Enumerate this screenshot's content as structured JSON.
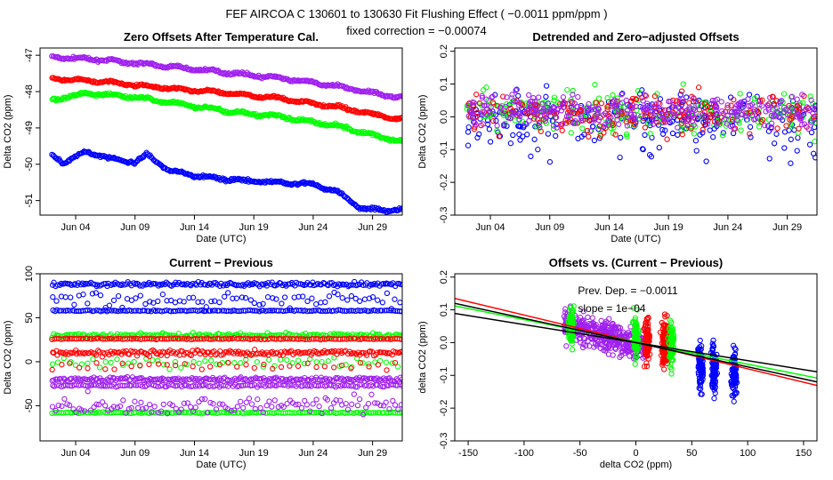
{
  "figure": {
    "title": "FEF    AIRCOA C    130601 to 130630    Fit Flushing Effect ( −0.0011 ppm/ppm )",
    "subtitle": "fixed correction = −0.00074"
  },
  "colors": {
    "purple": "#a020f0",
    "red": "#ff0000",
    "green": "#00ff00",
    "blue": "#0000ff",
    "black": "#000000"
  },
  "chart_data": [
    {
      "id": "p1",
      "type": "scatter",
      "title": "Zero Offsets After Temperature Cal.",
      "xlabel": "Date (UTC)",
      "ylabel": "Delta CO2 (ppm)",
      "xlim": [
        0,
        30.5
      ],
      "ylim": [
        -51.4,
        -46.8
      ],
      "xticks": [
        3,
        8,
        13,
        18,
        23,
        28
      ],
      "xticklabels": [
        "Jun 04",
        "Jun 09",
        "Jun 14",
        "Jun 19",
        "Jun 24",
        "Jun 29"
      ],
      "yticks": [
        -51,
        -50,
        -49,
        -48,
        -47
      ],
      "yticklabels": [
        "-51",
        "-50",
        "-49",
        "-48",
        "-47"
      ],
      "series": [
        {
          "name": "purple",
          "color": "#a020f0",
          "kind": "trend",
          "points": [
            [
              1,
              -47.05
            ],
            [
              5,
              -47.12
            ],
            [
              10,
              -47.28
            ],
            [
              15,
              -47.45
            ],
            [
              20,
              -47.62
            ],
            [
              25,
              -47.85
            ],
            [
              30,
              -48.15
            ]
          ],
          "jitter": 0.05,
          "density": 320
        },
        {
          "name": "red",
          "color": "#ff0000",
          "kind": "trend",
          "points": [
            [
              1,
              -47.65
            ],
            [
              5,
              -47.72
            ],
            [
              10,
              -47.88
            ],
            [
              15,
              -48.02
            ],
            [
              20,
              -48.18
            ],
            [
              25,
              -48.42
            ],
            [
              30,
              -48.75
            ]
          ],
          "jitter": 0.05,
          "density": 320
        },
        {
          "name": "green",
          "color": "#00ff00",
          "kind": "trend",
          "points": [
            [
              1,
              -48.22
            ],
            [
              4,
              -48.05
            ],
            [
              8,
              -48.15
            ],
            [
              12,
              -48.35
            ],
            [
              16,
              -48.55
            ],
            [
              20,
              -48.68
            ],
            [
              25,
              -48.95
            ],
            [
              30,
              -49.35
            ]
          ],
          "jitter": 0.06,
          "density": 320
        },
        {
          "name": "blue",
          "color": "#0000ff",
          "kind": "trend",
          "points": [
            [
              1,
              -49.75
            ],
            [
              2,
              -49.95
            ],
            [
              4,
              -49.65
            ],
            [
              6,
              -49.85
            ],
            [
              8,
              -49.95
            ],
            [
              9,
              -49.75
            ],
            [
              11,
              -50.2
            ],
            [
              14,
              -50.35
            ],
            [
              17,
              -50.45
            ],
            [
              20,
              -50.5
            ],
            [
              23,
              -50.55
            ],
            [
              25,
              -50.75
            ],
            [
              27,
              -51.2
            ],
            [
              28,
              -51.25
            ],
            [
              30,
              -51.25
            ]
          ],
          "jitter": 0.06,
          "density": 320
        }
      ]
    },
    {
      "id": "p2",
      "type": "scatter",
      "title": "Detrended and Zero−adjusted Offsets",
      "xlabel": "Date (UTC)",
      "ylabel": "Delta CO2 (ppm)",
      "xlim": [
        0,
        30.5
      ],
      "ylim": [
        -0.3,
        0.21
      ],
      "xticks": [
        3,
        8,
        13,
        18,
        23,
        28
      ],
      "xticklabels": [
        "Jun 04",
        "Jun 09",
        "Jun 14",
        "Jun 19",
        "Jun 24",
        "Jun 29"
      ],
      "yticks": [
        -0.3,
        -0.2,
        -0.1,
        0,
        0.1,
        0.2
      ],
      "yticklabels": [
        "-0.3",
        "-0.2",
        "-0.1",
        "0.0",
        "0.1",
        "0.2"
      ],
      "series": [
        {
          "name": "blue",
          "color": "#0000ff",
          "kind": "band",
          "center": 0.0,
          "spread": 0.09,
          "skew": -0.03,
          "density": 260
        },
        {
          "name": "green",
          "color": "#00ff00",
          "kind": "band",
          "center": 0.01,
          "spread": 0.08,
          "skew": 0.0,
          "density": 220
        },
        {
          "name": "red",
          "color": "#ff0000",
          "kind": "band",
          "center": 0.01,
          "spread": 0.07,
          "skew": 0.0,
          "density": 220
        },
        {
          "name": "purple",
          "color": "#a020f0",
          "kind": "band",
          "center": 0.02,
          "spread": 0.06,
          "skew": 0.0,
          "density": 320
        }
      ]
    },
    {
      "id": "p3",
      "type": "scatter",
      "title": "Current − Previous",
      "xlabel": "Date (UTC)",
      "ylabel": "Delta CO2 (ppm)",
      "xlim": [
        0,
        30.5
      ],
      "ylim": [
        -90,
        100
      ],
      "xticks": [
        3,
        8,
        13,
        18,
        23,
        28
      ],
      "xticklabels": [
        "Jun 04",
        "Jun 09",
        "Jun 14",
        "Jun 19",
        "Jun 24",
        "Jun 29"
      ],
      "yticks": [
        -50,
        0,
        50,
        100
      ],
      "yticklabels": [
        "-50",
        "0",
        "50",
        "100"
      ],
      "series": [
        {
          "name": "blue",
          "color": "#0000ff",
          "kind": "levels",
          "levels": [
            [
              88,
              3,
              200
            ],
            [
              58,
              1,
              160
            ],
            [
              70,
              12,
              80
            ]
          ]
        },
        {
          "name": "green",
          "color": "#00ff00",
          "kind": "levels",
          "levels": [
            [
              30,
              3,
              200
            ],
            [
              -58,
              1,
              160
            ],
            [
              0,
              8,
              60
            ]
          ]
        },
        {
          "name": "red",
          "color": "#ff0000",
          "kind": "levels",
          "levels": [
            [
              26,
              1,
              160
            ],
            [
              10,
              4,
              200
            ],
            [
              -5,
              6,
              40
            ]
          ]
        },
        {
          "name": "purple",
          "color": "#a020f0",
          "kind": "levels",
          "levels": [
            [
              -20,
              3,
              220
            ],
            [
              -27,
              2,
              160
            ],
            [
              -50,
              14,
              120
            ]
          ]
        }
      ]
    },
    {
      "id": "p4",
      "type": "scatter",
      "title": "Offsets vs. (Current − Previous)",
      "xlabel": "delta CO2 (ppm)",
      "ylabel": "delta CO2 (ppm)",
      "xlim": [
        -162,
        162
      ],
      "ylim": [
        -0.3,
        0.21
      ],
      "xticks": [
        -150,
        -100,
        -50,
        0,
        50,
        100,
        150
      ],
      "xticklabels": [
        "-150",
        "-100",
        "-50",
        "0",
        "50",
        "100",
        "150"
      ],
      "yticks": [
        -0.3,
        -0.2,
        -0.1,
        0,
        0.1,
        0.2
      ],
      "yticklabels": [
        "-0.3",
        "-0.2",
        "-0.1",
        "0.0",
        "0.1",
        "0.2"
      ],
      "annotations": [
        "Prev. Dep. =  −0.0011",
        "slope = 1e−04"
      ],
      "series": [
        {
          "name": "purple",
          "color": "#a020f0",
          "kind": "cloud",
          "xrange": [
            -65,
            10
          ],
          "center": 0.02,
          "spread": 0.06,
          "slope": -0.0009,
          "density": 380
        },
        {
          "name": "red",
          "color": "#ff0000",
          "kind": "columns",
          "cols": [
            10,
            25,
            28
          ],
          "center": 0.0,
          "spread": 0.08,
          "density": 240
        },
        {
          "name": "green",
          "color": "#00ff00",
          "kind": "columns",
          "cols": [
            -58,
            0,
            32
          ],
          "center": 0.0,
          "spread": 0.08,
          "density": 200
        },
        {
          "name": "blue",
          "color": "#0000ff",
          "kind": "columns",
          "cols": [
            58,
            70,
            88
          ],
          "center": -0.06,
          "spread": 0.08,
          "density": 260
        }
      ],
      "fit_lines": [
        {
          "name": "red-fit",
          "color": "#ff0000",
          "slope": -0.00082,
          "intercept": 0.002
        },
        {
          "name": "green-fit",
          "color": "#00ff00",
          "slope": -0.00068,
          "intercept": 0.002
        },
        {
          "name": "black-fit-steep",
          "color": "#000000",
          "slope": -0.00074,
          "intercept": 0.0
        },
        {
          "name": "black-fit-shallow",
          "color": "#000000",
          "slope": -0.00055,
          "intercept": 0.0
        }
      ]
    }
  ]
}
